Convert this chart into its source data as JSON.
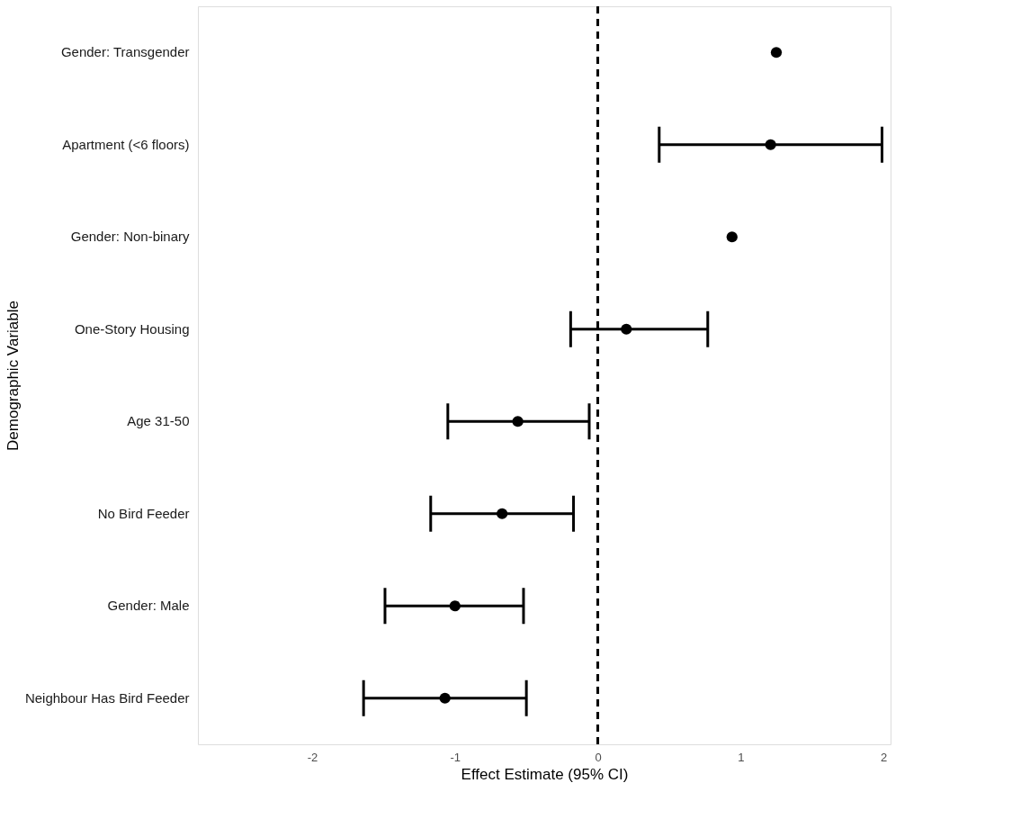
{
  "chart_data": {
    "type": "scatter",
    "orientation": "horizontal",
    "xlabel": "Effect Estimate (95% CI)",
    "ylabel": "Demographic Variable",
    "categories": [
      "Gender: Transgender",
      "Apartment (<6 floors)",
      "Gender: Non-binary",
      "One-Story Housing",
      "Age 31-50",
      "No Bird Feeder",
      "Gender: Male",
      "Neighbour Has Bird Feeder"
    ],
    "series": [
      {
        "color": "#000000",
        "values": [
          1.25,
          1.21,
          0.94,
          0.2,
          -0.56,
          -0.67,
          -1.0,
          -1.07
        ],
        "errors": [
          null,
          [
            0.43,
            1.99
          ],
          null,
          [
            -0.19,
            0.77
          ],
          [
            -1.05,
            -0.06
          ],
          [
            -1.17,
            -0.17
          ],
          [
            -1.49,
            -0.52
          ],
          [
            -1.64,
            -0.5
          ]
        ]
      }
    ],
    "xlim": [
      -2.8,
      2.05
    ],
    "xticks": [
      -2,
      -1,
      0,
      1,
      2
    ],
    "grid": false,
    "marker": "circle",
    "ref_lines": [
      {
        "axis": "x",
        "value": 0,
        "color": "#000000",
        "line_style": "dashed"
      }
    ]
  }
}
